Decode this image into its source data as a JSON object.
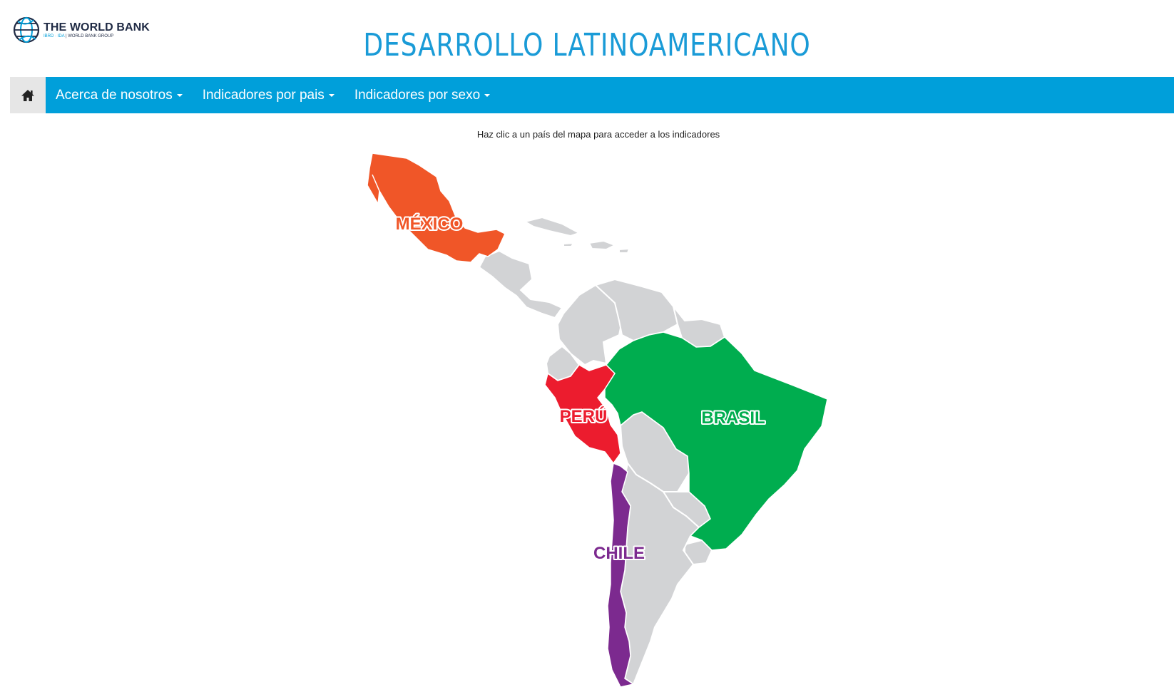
{
  "logo": {
    "name": "THE WORLD BANK",
    "sub_left": "IBRD · IDA",
    "sub_right": "WORLD BANK GROUP",
    "icon": "globe-icon"
  },
  "site_title": "DESARROLLO LATINOAMERICANO",
  "nav": {
    "home_icon": "home-icon",
    "items": [
      {
        "label": "Acerca de nosotros"
      },
      {
        "label": "Indicadores por pais"
      },
      {
        "label": "Indicadores por sexo"
      }
    ]
  },
  "instructions": "Haz clic a un país del mapa para acceder a los indicadores",
  "map": {
    "countries": [
      {
        "label": "MÉXICO",
        "color": "#f05628"
      },
      {
        "label": "PERÚ",
        "color": "#ec1c2e"
      },
      {
        "label": "BRASIL",
        "color": "#00ad4f"
      },
      {
        "label": "CHILE",
        "color": "#7c2a8f"
      }
    ],
    "other_color": "#d2d3d5"
  },
  "colors": {
    "accent": "#009fda",
    "title": "#1a9bd7",
    "home_bg": "#e6e6e6"
  }
}
